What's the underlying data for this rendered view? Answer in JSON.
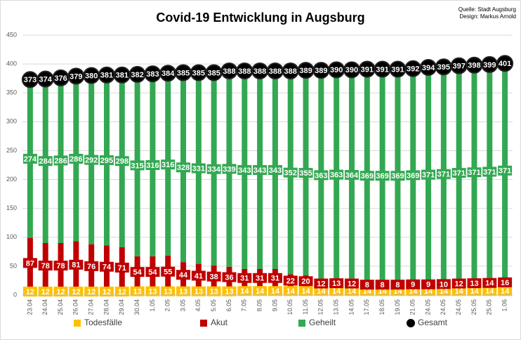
{
  "chart_data": {
    "type": "bar",
    "stacked": true,
    "grid": true,
    "title": "Covid-19 Entwicklung in Augsburg",
    "source": [
      "Quelle: Stadt Augsburg",
      "Design: Markus Arnold"
    ],
    "legend_position": "bottom",
    "categories": [
      "23.04",
      "24.04",
      "25.04",
      "26.04",
      "27.04",
      "28.04",
      "29.04",
      "30.04",
      "1.05",
      "2.05",
      "3.05",
      "4.05",
      "5.05",
      "6.05",
      "7.05",
      "8.05",
      "9.05",
      "10.05",
      "11.05",
      "12.05",
      "13.05",
      "14.05",
      "17.05",
      "18.05",
      "19.05",
      "21.05",
      "24.05",
      "24.05",
      "24.05",
      "25.05",
      "25.05",
      "1.06"
    ],
    "ylim": [
      0,
      450
    ],
    "yticks": [
      0,
      50,
      100,
      150,
      200,
      250,
      300,
      350,
      400,
      450
    ],
    "series": [
      {
        "name": "Todesfälle",
        "color": "#ffc000",
        "values": [
          12,
          12,
          12,
          12,
          12,
          12,
          12,
          13,
          13,
          13,
          13,
          13,
          13,
          13,
          14,
          14,
          14,
          14,
          14,
          14,
          14,
          14,
          14,
          14,
          14,
          14,
          14,
          14,
          14,
          14,
          14,
          14
        ]
      },
      {
        "name": "Akut",
        "color": "#c00000",
        "values": [
          87,
          78,
          78,
          81,
          76,
          74,
          71,
          54,
          54,
          55,
          44,
          41,
          38,
          36,
          31,
          31,
          31,
          22,
          20,
          12,
          13,
          12,
          8,
          8,
          8,
          9,
          9,
          10,
          12,
          13,
          14,
          16
        ]
      },
      {
        "name": "Geheilt",
        "color": "#33a852",
        "values": [
          274,
          284,
          286,
          286,
          292,
          295,
          298,
          315,
          316,
          316,
          328,
          331,
          334,
          339,
          343,
          343,
          343,
          352,
          355,
          363,
          363,
          364,
          369,
          369,
          369,
          369,
          371,
          371,
          371,
          371,
          371,
          371
        ]
      },
      {
        "name": "Gesamt",
        "type": "scatter",
        "color": "#000000",
        "values": [
          373,
          374,
          376,
          379,
          380,
          381,
          381,
          382,
          383,
          384,
          385,
          385,
          385,
          388,
          388,
          388,
          388,
          388,
          389,
          389,
          390,
          390,
          391,
          391,
          391,
          392,
          394,
          395,
          397,
          398,
          399,
          401
        ]
      }
    ]
  }
}
